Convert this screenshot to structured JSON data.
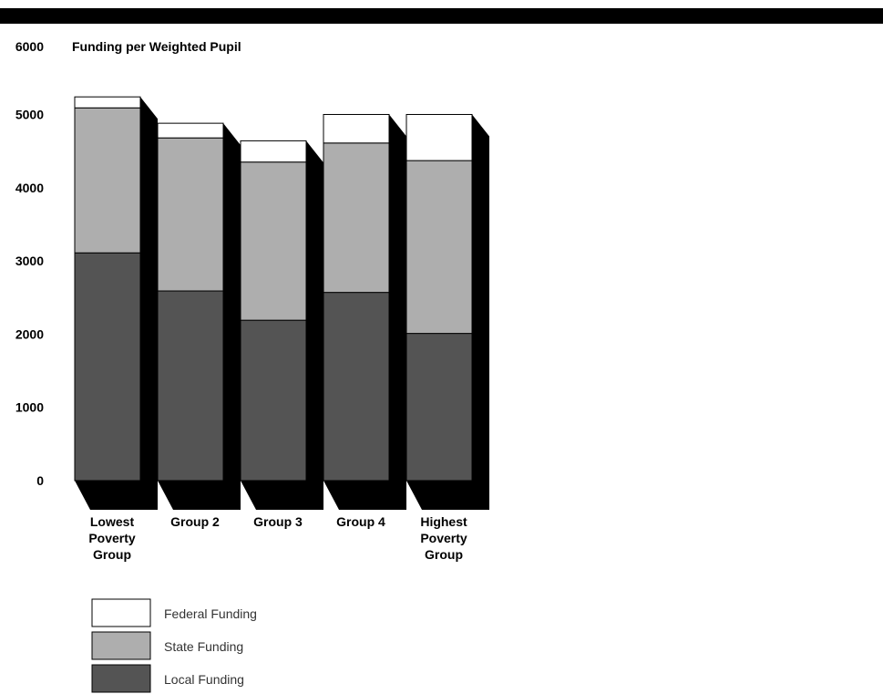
{
  "chart_data": {
    "type": "bar",
    "stacked": true,
    "title": "Funding per Weighted Pupil",
    "ylim": [
      0,
      6000
    ],
    "yticks": [
      "0",
      "1000",
      "2000",
      "3000",
      "4000",
      "5000",
      "6000"
    ],
    "categories": [
      [
        "Lowest",
        "Poverty",
        "Group"
      ],
      [
        "Group 2"
      ],
      [
        "Group 3"
      ],
      [
        "Group 4"
      ],
      [
        "Highest",
        "Poverty",
        "Group"
      ]
    ],
    "series": [
      {
        "name": "Local Funding",
        "color": "#545454",
        "values": [
          3110,
          2590,
          2190,
          2570,
          2010
        ]
      },
      {
        "name": "State Funding",
        "color": "#aeaeae",
        "values": [
          1980,
          2090,
          2160,
          2040,
          2360
        ]
      },
      {
        "name": "Federal Funding",
        "color": "#ffffff",
        "values": [
          150,
          200,
          290,
          390,
          630
        ]
      }
    ],
    "legend": {
      "placement": "bottom-left",
      "order": [
        "Federal Funding",
        "State Funding",
        "Local Funding"
      ]
    },
    "grid": false,
    "style": "3d-shadow"
  }
}
